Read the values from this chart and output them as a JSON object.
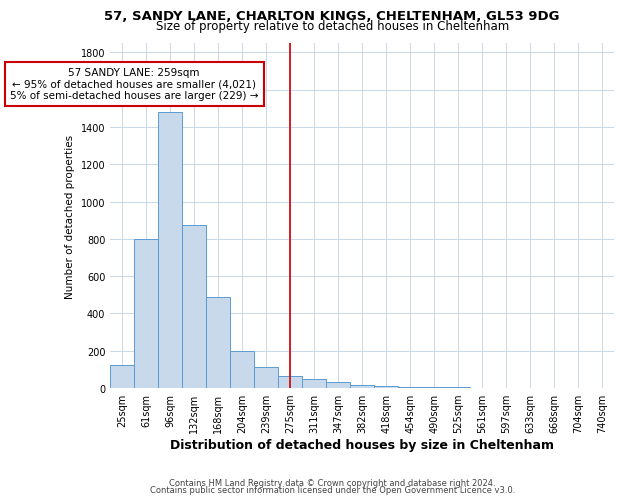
{
  "title_line1": "57, SANDY LANE, CHARLTON KINGS, CHELTENHAM, GL53 9DG",
  "title_line2": "Size of property relative to detached houses in Cheltenham",
  "xlabel": "Distribution of detached houses by size in Cheltenham",
  "ylabel": "Number of detached properties",
  "categories": [
    "25sqm",
    "61sqm",
    "96sqm",
    "132sqm",
    "168sqm",
    "204sqm",
    "239sqm",
    "275sqm",
    "311sqm",
    "347sqm",
    "382sqm",
    "418sqm",
    "454sqm",
    "490sqm",
    "525sqm",
    "561sqm",
    "597sqm",
    "633sqm",
    "668sqm",
    "704sqm",
    "740sqm"
  ],
  "values": [
    125,
    800,
    1480,
    875,
    490,
    200,
    110,
    65,
    50,
    30,
    18,
    10,
    6,
    4,
    3,
    2,
    2,
    1,
    1,
    0,
    0
  ],
  "bar_color": "#c8d9ec",
  "bar_edge_color": "#5b9bd5",
  "vline_x_index": 7,
  "vline_color": "#cc0000",
  "annotation_text": "57 SANDY LANE: 259sqm\n← 95% of detached houses are smaller (4,021)\n5% of semi-detached houses are larger (229) →",
  "annotation_box_color": "#ffffff",
  "annotation_box_edge": "#cc0000",
  "ylim": [
    0,
    1850
  ],
  "yticks": [
    0,
    200,
    400,
    600,
    800,
    1000,
    1200,
    1400,
    1600,
    1800
  ],
  "footnote_line1": "Contains HM Land Registry data © Crown copyright and database right 2024.",
  "footnote_line2": "Contains public sector information licensed under the Open Government Licence v3.0.",
  "bg_color": "#ffffff",
  "grid_color": "#c8d8e8",
  "title1_fontsize": 9.5,
  "title2_fontsize": 8.5,
  "xlabel_fontsize": 9,
  "ylabel_fontsize": 7.5,
  "tick_fontsize": 7,
  "footnote_fontsize": 6,
  "annot_fontsize": 7.5
}
